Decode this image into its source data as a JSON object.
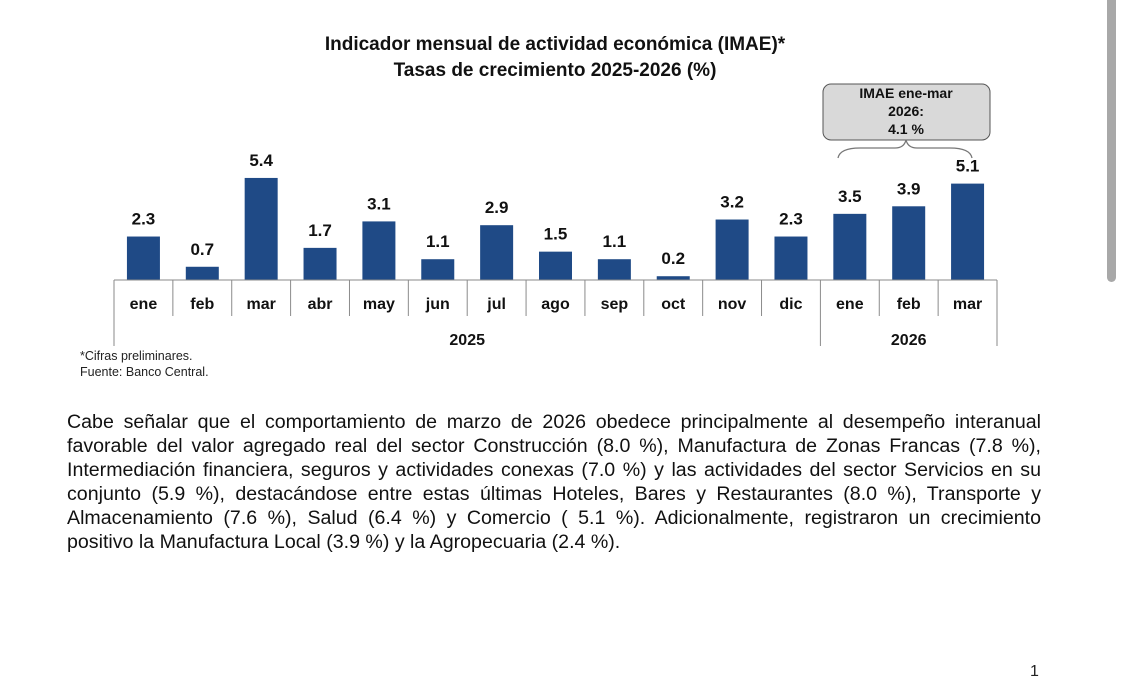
{
  "chart_data": {
    "type": "bar",
    "title": "Indicador mensual de actividad económica (IMAE)*",
    "subtitle": "Tasas de crecimiento 2025-2026 (%)",
    "xlabel": "",
    "ylabel": "",
    "categories": [
      "ene",
      "feb",
      "mar",
      "abr",
      "may",
      "jun",
      "jul",
      "ago",
      "sep",
      "oct",
      "nov",
      "dic",
      "ene",
      "feb",
      "mar"
    ],
    "groups": [
      {
        "label": "2025",
        "start": 0,
        "end": 11
      },
      {
        "label": "2026",
        "start": 12,
        "end": 14
      }
    ],
    "series": [
      {
        "name": "IMAE",
        "values": [
          2.3,
          0.7,
          5.4,
          1.7,
          3.1,
          1.1,
          2.9,
          1.5,
          1.1,
          0.2,
          3.2,
          2.3,
          3.5,
          3.9,
          5.1
        ]
      }
    ],
    "value_labels": [
      "2.3",
      "0.7",
      "5.4",
      "1.7",
      "3.1",
      "1.1",
      "2.9",
      "1.5",
      "1.1",
      "0.2",
      "3.2",
      "2.3",
      "3.5",
      "3.9",
      "5.1"
    ],
    "ylim": [
      0,
      6
    ],
    "grid": false,
    "bar_color": "#1f4a86",
    "annotation": {
      "lines": [
        "IMAE ene-mar",
        "2026:",
        "4.1 %"
      ],
      "spans_categories": [
        12,
        14
      ]
    }
  },
  "notes": {
    "preliminary": "*Cifras preliminares.",
    "source": "Fuente: Banco Central."
  },
  "paragraph": "Cabe señalar que el comportamiento de marzo de 2026 obedece principalmente al desempeño interanual favorable del valor agregado real del sector Construcción (8.0 %), Manufactura de Zonas Francas (7.8 %), Intermediación financiera, seguros y actividades conexas (7.0 %) y las actividades del sector Servicios en su conjunto (5.9 %), destacándose entre estas últimas Hoteles, Bares y Restaurantes (8.0 %), Transporte y Almacenamiento (7.6 %), Salud (6.4 %) y Comercio ( 5.1 %). Adicionalmente, registraron un crecimiento positivo la Manufactura Local (3.9 %) y la Agropecuaria (2.4 %).",
  "page_number": "1"
}
